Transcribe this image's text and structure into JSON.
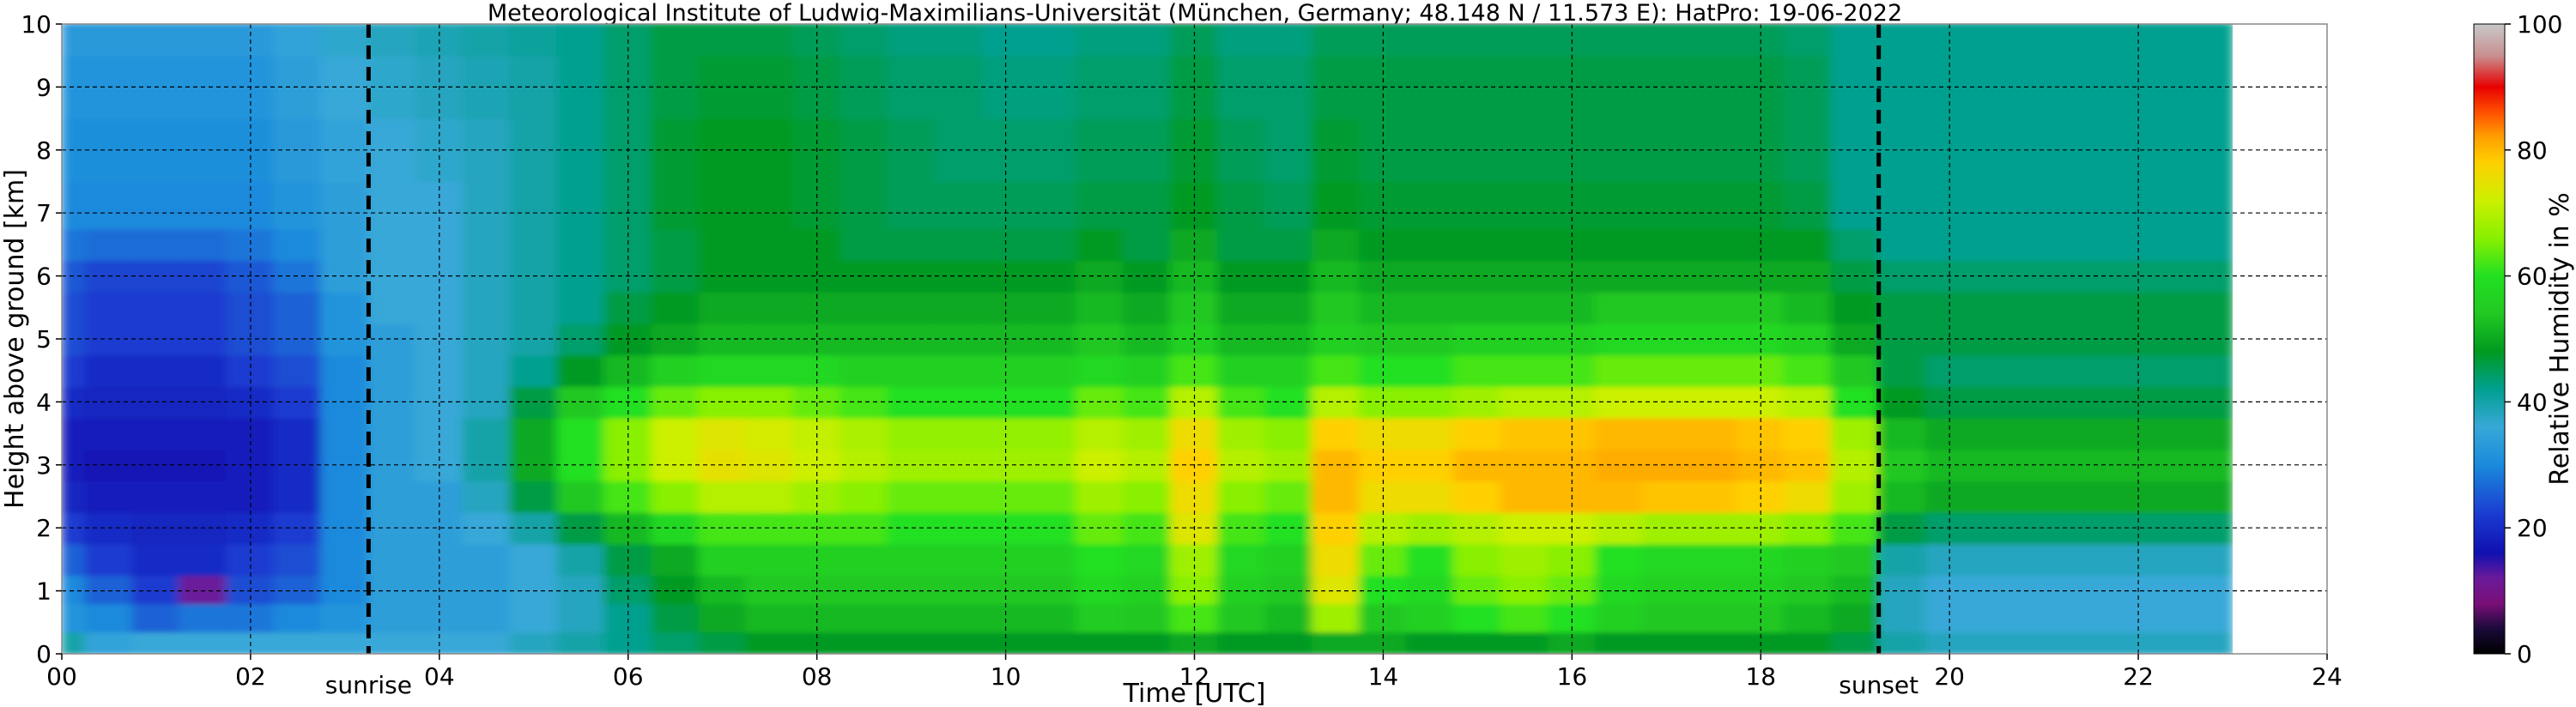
{
  "chart_data": {
    "type": "heatmap",
    "title": "Meteorological Institute of Ludwig-Maximilians-Universität (München, Germany; 48.148 N / 11.573 E):    HatPro: 19-06-2022",
    "xlabel": "Time [UTC]",
    "ylabel": "Height above ground [km]",
    "xlim": [
      0,
      24
    ],
    "ylim": [
      0,
      10
    ],
    "x_ticks": [
      {
        "value": 0,
        "label": "00"
      },
      {
        "value": 2,
        "label": "02"
      },
      {
        "value": 4,
        "label": "04"
      },
      {
        "value": 6,
        "label": "06"
      },
      {
        "value": 8,
        "label": "08"
      },
      {
        "value": 10,
        "label": "10"
      },
      {
        "value": 12,
        "label": "12"
      },
      {
        "value": 14,
        "label": "14"
      },
      {
        "value": 16,
        "label": "16"
      },
      {
        "value": 18,
        "label": "18"
      },
      {
        "value": 20,
        "label": "20"
      },
      {
        "value": 22,
        "label": "22"
      },
      {
        "value": 24,
        "label": "24"
      }
    ],
    "y_ticks": [
      {
        "value": 0,
        "label": "0"
      },
      {
        "value": 1,
        "label": "1"
      },
      {
        "value": 2,
        "label": "2"
      },
      {
        "value": 3,
        "label": "3"
      },
      {
        "value": 4,
        "label": "4"
      },
      {
        "value": 5,
        "label": "5"
      },
      {
        "value": 6,
        "label": "6"
      },
      {
        "value": 7,
        "label": "7"
      },
      {
        "value": 8,
        "label": "8"
      },
      {
        "value": 9,
        "label": "9"
      },
      {
        "value": 10,
        "label": "10"
      }
    ],
    "grid": true,
    "data_end_time": 23.0,
    "annotations": [
      {
        "label": "sunrise",
        "time": 3.25
      },
      {
        "label": "sunset",
        "time": 19.25
      }
    ],
    "colorbar": {
      "label": "Relative Humidity in %",
      "range": [
        0,
        100
      ],
      "ticks": [
        {
          "value": 0,
          "label": "0"
        },
        {
          "value": 20,
          "label": "20"
        },
        {
          "value": 40,
          "label": "40"
        },
        {
          "value": 60,
          "label": "60"
        },
        {
          "value": 80,
          "label": "80"
        },
        {
          "value": 100,
          "label": "100"
        }
      ],
      "stops": [
        {
          "value": 0,
          "color": "#000000"
        },
        {
          "value": 4,
          "color": "#1a0a3a"
        },
        {
          "value": 8,
          "color": "#7a0f78"
        },
        {
          "value": 12,
          "color": "#6a1a9a"
        },
        {
          "value": 16,
          "color": "#1010b0"
        },
        {
          "value": 22,
          "color": "#1a3ad0"
        },
        {
          "value": 30,
          "color": "#1a8adc"
        },
        {
          "value": 36,
          "color": "#38a8d8"
        },
        {
          "value": 42,
          "color": "#00a090"
        },
        {
          "value": 48,
          "color": "#009a20"
        },
        {
          "value": 54,
          "color": "#22c822"
        },
        {
          "value": 60,
          "color": "#22e022"
        },
        {
          "value": 66,
          "color": "#88f000"
        },
        {
          "value": 72,
          "color": "#ccf000"
        },
        {
          "value": 78,
          "color": "#ffd000"
        },
        {
          "value": 82,
          "color": "#ffa000"
        },
        {
          "value": 86,
          "color": "#ff5000"
        },
        {
          "value": 90,
          "color": "#e80000"
        },
        {
          "value": 95,
          "color": "#c89090"
        },
        {
          "value": 100,
          "color": "#c8c8c8"
        }
      ]
    },
    "humidity_field": {
      "times": [
        0.0,
        0.5,
        1.0,
        1.5,
        2.0,
        2.5,
        3.0,
        3.5,
        4.0,
        4.5,
        5.0,
        5.5,
        6.0,
        6.5,
        7.0,
        7.5,
        8.0,
        8.5,
        9.0,
        9.5,
        10.0,
        10.5,
        11.0,
        11.5,
        12.0,
        12.5,
        13.0,
        13.5,
        14.0,
        14.5,
        15.0,
        15.5,
        16.0,
        16.5,
        17.0,
        17.5,
        18.0,
        18.5,
        19.0,
        19.5,
        20.0,
        20.5,
        21.0,
        21.5,
        22.0,
        22.5,
        23.0
      ],
      "heights": [
        0.1,
        0.6,
        1.0,
        1.5,
        2.0,
        2.5,
        3.0,
        3.5,
        4.0,
        4.5,
        5.0,
        5.5,
        6.0,
        6.5,
        7.0,
        8.0,
        9.0,
        10.0
      ],
      "values": [
        [
          40,
          35,
          36,
          36,
          36,
          36,
          36,
          36,
          36,
          36,
          38,
          40,
          42,
          44,
          46,
          48,
          48,
          48,
          48,
          48,
          48,
          48,
          48,
          48,
          50,
          48,
          48,
          50,
          50,
          48,
          48,
          48,
          50,
          48,
          48,
          48,
          48,
          48,
          46,
          40,
          38,
          38,
          38,
          38,
          38,
          38,
          38
        ],
        [
          32,
          30,
          26,
          28,
          28,
          30,
          32,
          34,
          34,
          34,
          36,
          38,
          42,
          46,
          50,
          52,
          52,
          52,
          52,
          52,
          52,
          52,
          55,
          54,
          62,
          54,
          52,
          68,
          54,
          56,
          60,
          62,
          60,
          56,
          54,
          54,
          54,
          52,
          50,
          38,
          36,
          36,
          36,
          36,
          36,
          36,
          36
        ],
        [
          30,
          26,
          22,
          12,
          24,
          26,
          30,
          34,
          34,
          34,
          36,
          38,
          44,
          48,
          52,
          54,
          54,
          54,
          54,
          54,
          54,
          54,
          58,
          56,
          66,
          56,
          54,
          74,
          60,
          58,
          64,
          66,
          64,
          58,
          56,
          56,
          56,
          54,
          52,
          38,
          36,
          36,
          36,
          36,
          36,
          36,
          36
        ],
        [
          26,
          22,
          20,
          20,
          22,
          24,
          30,
          34,
          34,
          34,
          36,
          40,
          46,
          50,
          56,
          56,
          56,
          56,
          56,
          56,
          56,
          56,
          60,
          58,
          68,
          58,
          56,
          76,
          64,
          60,
          66,
          68,
          66,
          60,
          58,
          58,
          58,
          56,
          54,
          40,
          38,
          38,
          38,
          38,
          38,
          38,
          38
        ],
        [
          22,
          20,
          19,
          19,
          20,
          22,
          30,
          34,
          34,
          36,
          40,
          46,
          52,
          58,
          62,
          62,
          62,
          62,
          60,
          60,
          60,
          60,
          64,
          62,
          74,
          62,
          60,
          78,
          70,
          68,
          70,
          72,
          72,
          70,
          68,
          68,
          68,
          66,
          62,
          46,
          44,
          44,
          44,
          44,
          44,
          44,
          44
        ],
        [
          19,
          18,
          18,
          18,
          18,
          20,
          30,
          34,
          34,
          38,
          46,
          54,
          62,
          66,
          70,
          70,
          68,
          66,
          64,
          64,
          64,
          64,
          68,
          66,
          76,
          66,
          64,
          80,
          76,
          76,
          78,
          80,
          80,
          80,
          79,
          79,
          78,
          76,
          68,
          52,
          50,
          50,
          50,
          50,
          50,
          50,
          50
        ],
        [
          18,
          17,
          17,
          17,
          18,
          20,
          30,
          34,
          36,
          40,
          50,
          60,
          66,
          72,
          75,
          74,
          72,
          70,
          68,
          68,
          68,
          68,
          72,
          70,
          78,
          70,
          68,
          80,
          78,
          78,
          80,
          80,
          80,
          81,
          81,
          81,
          80,
          79,
          70,
          54,
          52,
          52,
          52,
          52,
          52,
          52,
          52
        ],
        [
          18,
          18,
          18,
          18,
          18,
          20,
          30,
          34,
          36,
          40,
          50,
          60,
          66,
          72,
          74,
          73,
          71,
          69,
          67,
          67,
          67,
          67,
          70,
          68,
          76,
          68,
          66,
          78,
          76,
          76,
          78,
          79,
          79,
          80,
          80,
          80,
          79,
          78,
          68,
          52,
          50,
          50,
          50,
          50,
          50,
          50,
          50
        ],
        [
          20,
          19,
          19,
          19,
          20,
          22,
          30,
          34,
          36,
          38,
          46,
          54,
          60,
          64,
          66,
          66,
          64,
          62,
          60,
          60,
          60,
          60,
          64,
          62,
          70,
          62,
          60,
          70,
          66,
          66,
          68,
          70,
          70,
          72,
          72,
          72,
          72,
          70,
          60,
          48,
          46,
          46,
          46,
          46,
          46,
          46,
          46
        ],
        [
          22,
          20,
          20,
          20,
          22,
          24,
          30,
          34,
          36,
          38,
          42,
          48,
          52,
          56,
          58,
          58,
          58,
          56,
          56,
          56,
          56,
          56,
          58,
          56,
          62,
          56,
          56,
          62,
          60,
          60,
          62,
          62,
          62,
          64,
          64,
          64,
          64,
          62,
          54,
          46,
          44,
          44,
          44,
          44,
          44,
          44,
          44
        ],
        [
          24,
          22,
          22,
          22,
          24,
          26,
          32,
          34,
          36,
          38,
          40,
          44,
          48,
          50,
          52,
          52,
          52,
          52,
          52,
          52,
          52,
          52,
          54,
          52,
          56,
          52,
          52,
          56,
          54,
          54,
          56,
          56,
          56,
          58,
          58,
          58,
          58,
          56,
          50,
          46,
          46,
          46,
          46,
          46,
          46,
          46,
          46
        ],
        [
          24,
          22,
          22,
          22,
          24,
          26,
          32,
          36,
          36,
          38,
          40,
          42,
          46,
          48,
          50,
          50,
          50,
          50,
          50,
          50,
          50,
          50,
          52,
          50,
          54,
          50,
          50,
          54,
          52,
          52,
          52,
          52,
          52,
          54,
          54,
          54,
          54,
          52,
          48,
          46,
          46,
          46,
          46,
          46,
          46,
          46,
          46
        ],
        [
          25,
          23,
          23,
          23,
          25,
          28,
          34,
          36,
          36,
          38,
          40,
          42,
          44,
          46,
          48,
          48,
          48,
          48,
          48,
          48,
          48,
          48,
          50,
          48,
          52,
          48,
          48,
          52,
          50,
          50,
          50,
          50,
          50,
          50,
          50,
          50,
          50,
          50,
          46,
          44,
          44,
          44,
          44,
          44,
          44,
          44,
          44
        ],
        [
          28,
          27,
          27,
          27,
          28,
          30,
          34,
          36,
          36,
          38,
          40,
          42,
          44,
          46,
          48,
          48,
          48,
          46,
          46,
          46,
          46,
          46,
          48,
          46,
          50,
          46,
          46,
          50,
          48,
          48,
          48,
          48,
          48,
          48,
          48,
          48,
          48,
          48,
          44,
          42,
          42,
          42,
          42,
          42,
          42,
          42,
          42
        ],
        [
          30,
          30,
          30,
          30,
          30,
          32,
          34,
          36,
          36,
          38,
          40,
          42,
          44,
          47,
          48,
          48,
          47,
          46,
          45,
          45,
          45,
          45,
          46,
          46,
          48,
          46,
          45,
          48,
          47,
          47,
          47,
          47,
          47,
          47,
          47,
          47,
          47,
          46,
          42,
          42,
          42,
          42,
          42,
          42,
          42,
          42,
          42
        ],
        [
          31,
          31,
          31,
          31,
          31,
          33,
          35,
          36,
          37,
          38,
          40,
          42,
          44,
          47,
          48,
          48,
          47,
          46,
          45,
          44,
          44,
          44,
          45,
          45,
          47,
          45,
          44,
          47,
          46,
          46,
          46,
          46,
          46,
          46,
          46,
          46,
          46,
          45,
          42,
          42,
          42,
          42,
          42,
          42,
          42,
          42,
          42
        ],
        [
          32,
          32,
          32,
          32,
          32,
          34,
          36,
          37,
          38,
          39,
          40,
          42,
          44,
          46,
          47,
          47,
          46,
          45,
          44,
          44,
          43,
          43,
          44,
          44,
          46,
          44,
          44,
          46,
          46,
          46,
          46,
          46,
          46,
          46,
          46,
          46,
          46,
          45,
          42,
          42,
          42,
          42,
          42,
          42,
          42,
          42,
          42
        ],
        [
          33,
          33,
          33,
          33,
          33,
          35,
          37,
          38,
          39,
          40,
          41,
          42,
          44,
          46,
          46,
          46,
          45,
          44,
          43,
          43,
          42,
          42,
          43,
          43,
          45,
          43,
          43,
          45,
          45,
          45,
          45,
          45,
          45,
          45,
          45,
          45,
          45,
          44,
          42,
          42,
          42,
          42,
          42,
          42,
          42,
          42,
          42
        ]
      ]
    }
  }
}
